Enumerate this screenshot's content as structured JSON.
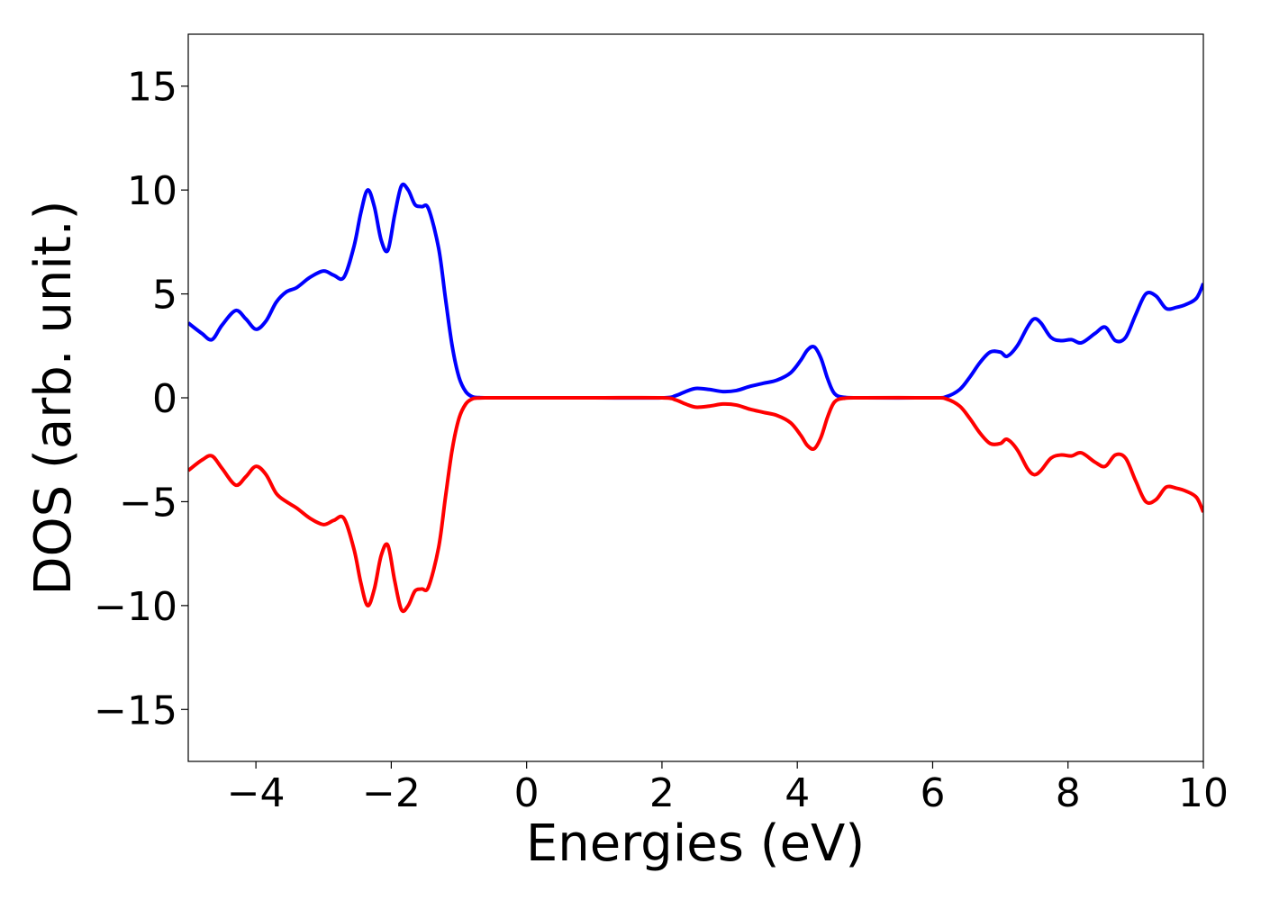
{
  "chart_data": {
    "type": "line",
    "title": "",
    "xlabel": "Energies (eV)",
    "ylabel": "DOS (arb. unit.)",
    "xlim": [
      -5,
      10
    ],
    "ylim": [
      -17.5,
      17.5
    ],
    "xticks": [
      -4,
      -2,
      0,
      2,
      4,
      6,
      8,
      10
    ],
    "yticks": [
      -15,
      -10,
      -5,
      0,
      5,
      10,
      15
    ],
    "xtick_labels": [
      "−4",
      "−2",
      "0",
      "2",
      "4",
      "6",
      "8",
      "10"
    ],
    "ytick_labels": [
      "−15",
      "−10",
      "−5",
      "0",
      "5",
      "10",
      "15"
    ],
    "grid": false,
    "legend": "none",
    "series": [
      {
        "color": "#0000ff",
        "x": [
          -5.0,
          -4.8,
          -4.65,
          -4.5,
          -4.3,
          -4.15,
          -4.0,
          -3.85,
          -3.7,
          -3.55,
          -3.4,
          -3.2,
          -3.0,
          -2.85,
          -2.7,
          -2.55,
          -2.45,
          -2.35,
          -2.25,
          -2.15,
          -2.05,
          -1.95,
          -1.85,
          -1.75,
          -1.65,
          -1.55,
          -1.45,
          -1.3,
          -1.2,
          -1.1,
          -1.0,
          -0.9,
          -0.8,
          -0.7,
          -0.6,
          -0.5,
          0.0,
          1.0,
          2.0,
          2.2,
          2.35,
          2.5,
          2.7,
          2.9,
          3.1,
          3.3,
          3.5,
          3.7,
          3.9,
          4.05,
          4.15,
          4.25,
          4.35,
          4.45,
          4.55,
          4.7,
          5.0,
          6.0,
          6.2,
          6.4,
          6.55,
          6.7,
          6.85,
          7.0,
          7.1,
          7.25,
          7.4,
          7.5,
          7.6,
          7.75,
          7.9,
          8.05,
          8.2,
          8.4,
          8.55,
          8.7,
          8.85,
          9.0,
          9.15,
          9.3,
          9.45,
          9.6,
          9.75,
          9.9,
          10.0
        ],
        "y": [
          3.6,
          3.1,
          2.8,
          3.5,
          4.2,
          3.8,
          3.3,
          3.7,
          4.6,
          5.1,
          5.3,
          5.8,
          6.1,
          5.9,
          5.8,
          7.3,
          8.9,
          10.0,
          9.2,
          7.6,
          7.1,
          8.8,
          10.2,
          10.0,
          9.3,
          9.2,
          9.1,
          7.2,
          4.8,
          2.5,
          1.0,
          0.3,
          0.05,
          0.01,
          0.0,
          0.0,
          0.0,
          0.0,
          0.0,
          0.1,
          0.3,
          0.45,
          0.4,
          0.3,
          0.35,
          0.55,
          0.7,
          0.85,
          1.2,
          1.8,
          2.3,
          2.45,
          1.9,
          0.9,
          0.2,
          0.02,
          0.0,
          0.0,
          0.05,
          0.4,
          1.0,
          1.7,
          2.2,
          2.2,
          2.0,
          2.5,
          3.4,
          3.8,
          3.6,
          2.9,
          2.75,
          2.8,
          2.65,
          3.1,
          3.4,
          2.75,
          2.9,
          4.0,
          5.0,
          4.9,
          4.3,
          4.35,
          4.5,
          4.8,
          5.5
        ]
      },
      {
        "color": "#ff0000",
        "x": [
          -5.0,
          -4.8,
          -4.65,
          -4.5,
          -4.3,
          -4.15,
          -4.0,
          -3.85,
          -3.7,
          -3.55,
          -3.4,
          -3.2,
          -3.0,
          -2.85,
          -2.7,
          -2.55,
          -2.45,
          -2.35,
          -2.25,
          -2.15,
          -2.05,
          -1.95,
          -1.85,
          -1.75,
          -1.65,
          -1.55,
          -1.45,
          -1.3,
          -1.2,
          -1.1,
          -1.0,
          -0.9,
          -0.8,
          -0.7,
          -0.6,
          -0.5,
          0.0,
          1.0,
          2.0,
          2.2,
          2.35,
          2.5,
          2.7,
          2.9,
          3.1,
          3.3,
          3.5,
          3.7,
          3.9,
          4.05,
          4.15,
          4.25,
          4.35,
          4.45,
          4.55,
          4.7,
          5.0,
          6.0,
          6.2,
          6.4,
          6.55,
          6.7,
          6.85,
          7.0,
          7.1,
          7.25,
          7.4,
          7.5,
          7.6,
          7.75,
          7.9,
          8.05,
          8.2,
          8.4,
          8.55,
          8.7,
          8.85,
          9.0,
          9.15,
          9.3,
          9.45,
          9.6,
          9.75,
          9.9,
          10.0
        ],
        "y": [
          -3.5,
          -3.0,
          -2.8,
          -3.4,
          -4.2,
          -3.8,
          -3.3,
          -3.7,
          -4.6,
          -5.0,
          -5.3,
          -5.8,
          -6.1,
          -5.9,
          -5.8,
          -7.3,
          -8.9,
          -10.0,
          -9.2,
          -7.6,
          -7.1,
          -8.8,
          -10.2,
          -10.0,
          -9.3,
          -9.2,
          -9.1,
          -7.2,
          -4.8,
          -2.5,
          -1.0,
          -0.3,
          -0.05,
          -0.01,
          0.0,
          0.0,
          0.0,
          0.0,
          0.0,
          -0.1,
          -0.3,
          -0.45,
          -0.4,
          -0.3,
          -0.35,
          -0.55,
          -0.7,
          -0.85,
          -1.2,
          -1.8,
          -2.3,
          -2.45,
          -1.9,
          -0.9,
          -0.2,
          -0.02,
          0.0,
          0.0,
          -0.05,
          -0.4,
          -1.0,
          -1.7,
          -2.2,
          -2.2,
          -2.0,
          -2.5,
          -3.4,
          -3.7,
          -3.5,
          -2.9,
          -2.75,
          -2.8,
          -2.65,
          -3.1,
          -3.3,
          -2.75,
          -2.9,
          -4.0,
          -5.0,
          -4.9,
          -4.3,
          -4.35,
          -4.5,
          -4.8,
          -5.5
        ]
      }
    ]
  }
}
